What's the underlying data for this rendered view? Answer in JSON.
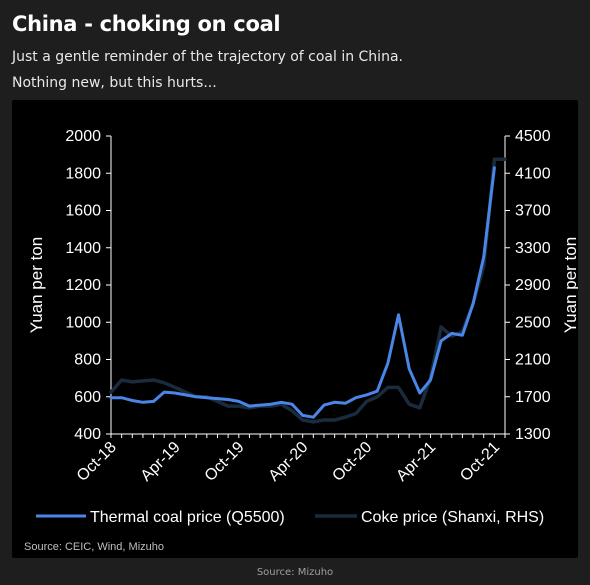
{
  "header": {
    "title": "China - choking on coal",
    "subtitle_line1": "Just a gentle reminder of the trajectory of coal in China.",
    "subtitle_line2": "Nothing new, but this hurts..."
  },
  "footer": {
    "source": "Source: Mizuho"
  },
  "chart_data": {
    "type": "line",
    "title": "",
    "ylabel_left": "Yuan per ton",
    "ylabel_right": "Yuan per ton",
    "ylim_left": [
      400,
      2000
    ],
    "ylim_right": [
      1300,
      4500
    ],
    "yticks_left": [
      400,
      600,
      800,
      1000,
      1200,
      1400,
      1600,
      1800,
      2000
    ],
    "yticks_right": [
      1300,
      1700,
      2100,
      2500,
      2900,
      3300,
      3700,
      4100,
      4500
    ],
    "x_range_months": [
      "2018-10",
      "2021-11"
    ],
    "x_tick_labels": [
      "Oct-18",
      "Apr-19",
      "Oct-19",
      "Apr-20",
      "Oct-20",
      "Apr-21",
      "Oct-21"
    ],
    "legend_position": "bottom",
    "source_note": "Source: CEIC, Wind, Mizuho",
    "colors": {
      "thermal": "#4a86e8",
      "coke": "#1a2b3d"
    },
    "series": [
      {
        "name": "Thermal coal price (Q5500)",
        "axis": "left",
        "x": [
          "2018-10",
          "2018-11",
          "2018-12",
          "2019-01",
          "2019-02",
          "2019-03",
          "2019-04",
          "2019-05",
          "2019-06",
          "2019-07",
          "2019-08",
          "2019-09",
          "2019-10",
          "2019-11",
          "2019-12",
          "2020-01",
          "2020-02",
          "2020-03",
          "2020-04",
          "2020-05",
          "2020-06",
          "2020-07",
          "2020-08",
          "2020-09",
          "2020-10",
          "2020-11",
          "2020-12",
          "2021-01",
          "2021-02",
          "2021-03",
          "2021-04",
          "2021-05",
          "2021-06",
          "2021-07",
          "2021-08",
          "2021-09",
          "2021-10"
        ],
        "values": [
          595,
          595,
          580,
          570,
          575,
          625,
          620,
          610,
          600,
          595,
          590,
          585,
          575,
          550,
          555,
          560,
          570,
          560,
          500,
          490,
          555,
          570,
          565,
          595,
          610,
          630,
          780,
          1040,
          750,
          620,
          690,
          900,
          940,
          930,
          1100,
          1350,
          1830
        ]
      },
      {
        "name": "Coke price (Shanxi, RHS)",
        "axis": "right",
        "x": [
          "2018-10",
          "2018-11",
          "2018-12",
          "2019-01",
          "2019-02",
          "2019-03",
          "2019-04",
          "2019-05",
          "2019-06",
          "2019-07",
          "2019-08",
          "2019-09",
          "2019-10",
          "2019-11",
          "2019-12",
          "2020-01",
          "2020-02",
          "2020-03",
          "2020-04",
          "2020-05",
          "2020-06",
          "2020-07",
          "2020-08",
          "2020-09",
          "2020-10",
          "2020-11",
          "2020-12",
          "2021-01",
          "2021-02",
          "2021-03",
          "2021-04",
          "2021-05",
          "2021-06",
          "2021-07",
          "2021-08",
          "2021-09",
          "2021-10",
          "2021-11"
        ],
        "values": [
          1750,
          1880,
          1860,
          1870,
          1880,
          1850,
          1800,
          1750,
          1700,
          1700,
          1650,
          1600,
          1600,
          1580,
          1600,
          1600,
          1620,
          1550,
          1450,
          1430,
          1450,
          1450,
          1480,
          1520,
          1650,
          1700,
          1800,
          1800,
          1620,
          1580,
          1900,
          2450,
          2350,
          2400,
          2700,
          3100,
          4250,
          4250
        ]
      }
    ]
  }
}
